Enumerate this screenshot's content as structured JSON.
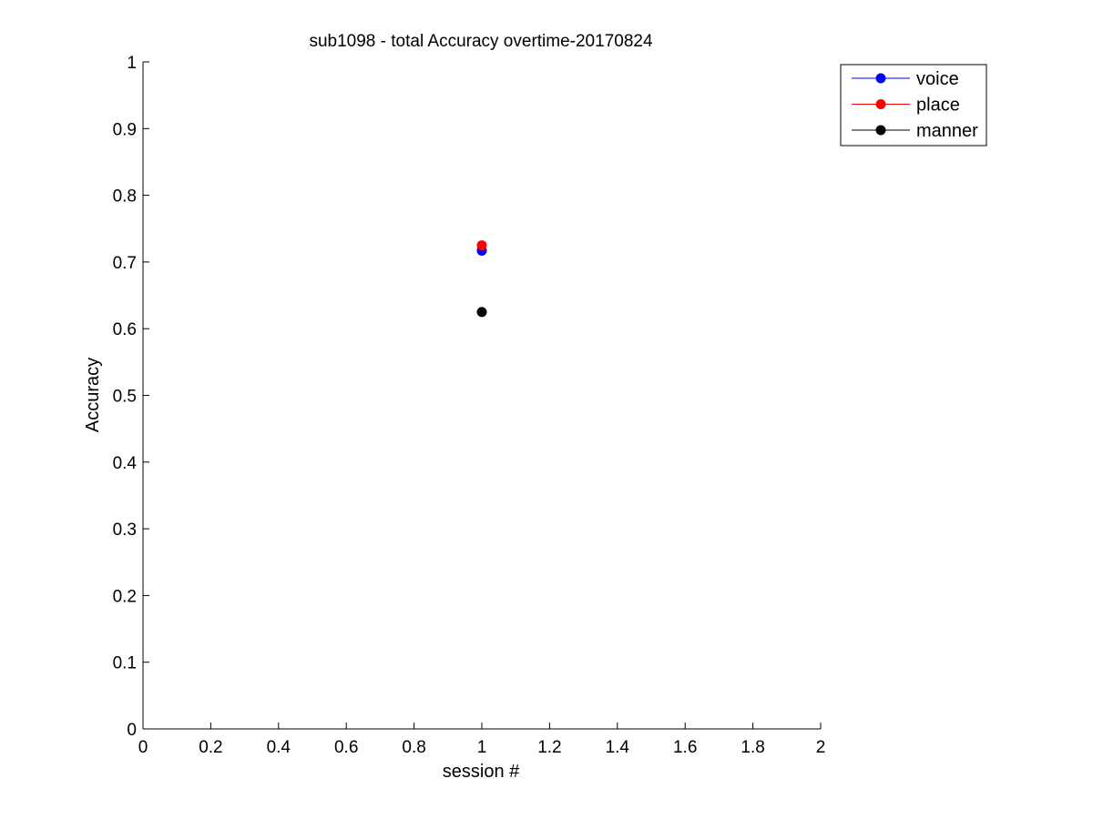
{
  "chart_data": {
    "type": "scatter",
    "title": "sub1098 - total Accuracy overtime-20170824",
    "xlabel": "session #",
    "ylabel": "Accuracy",
    "xlim": [
      0,
      2
    ],
    "ylim": [
      0,
      1
    ],
    "xticks": [
      0,
      0.2,
      0.4,
      0.6,
      0.8,
      1,
      1.2,
      1.4,
      1.6,
      1.8,
      2
    ],
    "xtick_labels": [
      "0",
      "0.2",
      "0.4",
      "0.6",
      "0.8",
      "1",
      "1.2",
      "1.4",
      "1.6",
      "1.8",
      "2"
    ],
    "yticks": [
      0,
      0.1,
      0.2,
      0.3,
      0.4,
      0.5,
      0.6,
      0.7,
      0.8,
      0.9,
      1
    ],
    "ytick_labels": [
      "0",
      "0.1",
      "0.2",
      "0.3",
      "0.4",
      "0.5",
      "0.6",
      "0.7",
      "0.8",
      "0.9",
      "1"
    ],
    "grid": false,
    "legend_position": "top-right",
    "series": [
      {
        "name": "voice",
        "color": "#0000ff",
        "x": [
          1
        ],
        "y": [
          0.717
        ]
      },
      {
        "name": "place",
        "color": "#ff0000",
        "x": [
          1
        ],
        "y": [
          0.725
        ]
      },
      {
        "name": "manner",
        "color": "#000000",
        "x": [
          1
        ],
        "y": [
          0.625
        ]
      }
    ]
  }
}
